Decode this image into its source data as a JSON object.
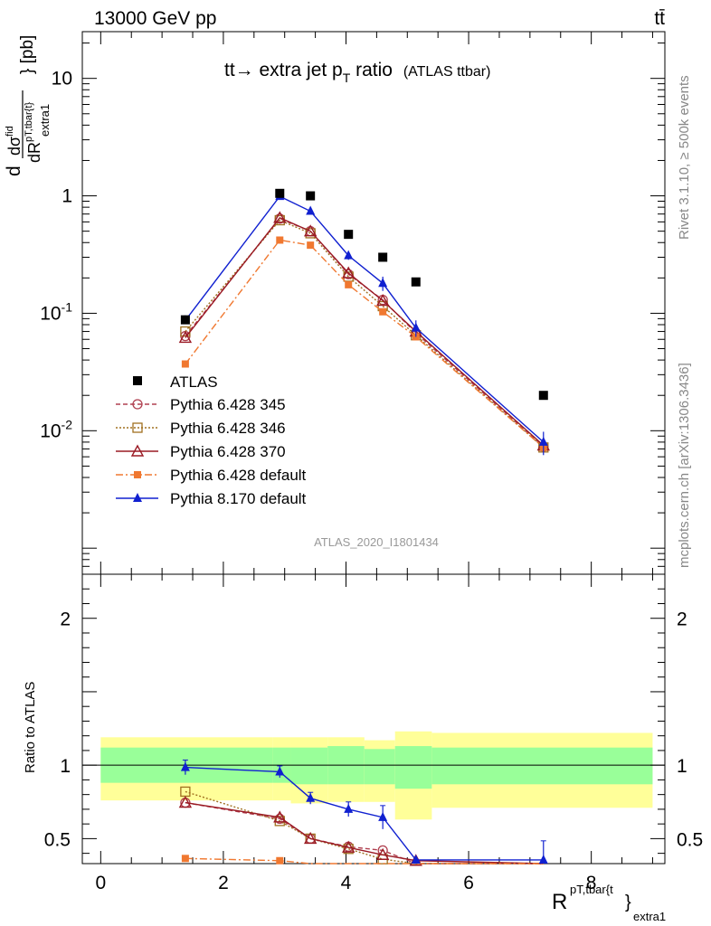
{
  "header": {
    "left": "13000 GeV pp",
    "right": "tt̄"
  },
  "side_labels": {
    "rivet": "Rivet 3.1.10, ≥ 500k events",
    "mcplots": "mcplots.cern.ch [arXiv:1306.3436]"
  },
  "watermark": "ATLAS_2020_I1801434",
  "chart_data": {
    "type": "line",
    "title": "tt̅→ extra jet pT ratio (ATLAS ttbar)",
    "title_main": "tt→ extra jet p",
    "title_sub": "T",
    "title_tail": " ratio",
    "title_small": "(ATLAS ttbar)",
    "ylabel_main": "dσ / dR [pb]",
    "ylabel_parts": {
      "d": "d",
      "sigma": "dσ",
      "fid": "fid",
      "den": "dR",
      "den_sup": "pT,tbar{t}",
      "den_sub": "extra1",
      "unit": "} [pb]"
    },
    "xlabel_main": "R",
    "xlabel_sup": "pT,tbar{t",
    "xlabel_sub": "}",
    "xlabel_sub2": "extra1",
    "ratio_ylabel": "Ratio to ATLAS",
    "xlim": [
      -0.3,
      9.2
    ],
    "ylim_main": [
      0.0006,
      25
    ],
    "ylim_ratio": [
      0.33,
      2.3
    ],
    "yscale_main": "log",
    "x_ticks": [
      0,
      2,
      4,
      6,
      8
    ],
    "y_ticks_main": [
      {
        "value": 0.01,
        "base": "10",
        "exp": "-2"
      },
      {
        "value": 0.1,
        "base": "10",
        "exp": "-1"
      },
      {
        "value": 1,
        "base": "1",
        "exp": ""
      },
      {
        "value": 10,
        "base": "10",
        "exp": ""
      }
    ],
    "y_ticks_ratio": [
      {
        "value": 0.5,
        "label": "0.5"
      },
      {
        "value": 1,
        "label": "1"
      },
      {
        "value": 2,
        "label": "2"
      }
    ],
    "legend_position": "left",
    "data": {
      "name": "ATLAS",
      "x": [
        1.38,
        2.92,
        3.42,
        4.04,
        4.6,
        5.14,
        7.22
      ],
      "y": [
        0.088,
        1.05,
        1.0,
        0.47,
        0.3,
        0.185,
        0.02
      ]
    },
    "bands": [
      {
        "x0": 0.0,
        "x1": 2.8,
        "green": [
          0.88,
          1.12
        ],
        "yellow": [
          0.76,
          1.19
        ]
      },
      {
        "x0": 2.8,
        "x1": 3.1,
        "green": [
          0.88,
          1.12
        ],
        "yellow": [
          0.76,
          1.19
        ]
      },
      {
        "x0": 3.1,
        "x1": 3.7,
        "green": [
          0.87,
          1.12
        ],
        "yellow": [
          0.74,
          1.19
        ]
      },
      {
        "x0": 3.7,
        "x1": 4.3,
        "green": [
          0.87,
          1.13
        ],
        "yellow": [
          0.75,
          1.19
        ]
      },
      {
        "x0": 4.3,
        "x1": 4.8,
        "green": [
          0.87,
          1.11
        ],
        "yellow": [
          0.75,
          1.17
        ]
      },
      {
        "x0": 4.8,
        "x1": 5.4,
        "green": [
          0.84,
          1.13
        ],
        "yellow": [
          0.63,
          1.23
        ]
      },
      {
        "x0": 5.4,
        "x1": 9.0,
        "green": [
          0.87,
          1.12
        ],
        "yellow": [
          0.71,
          1.22
        ]
      }
    ],
    "series": [
      {
        "name": "Pythia 6.428 345",
        "color": "#b04050",
        "dash": "5,3",
        "marker": "circle-open",
        "x": [
          1.38,
          2.92,
          3.42,
          4.04,
          4.6,
          5.14,
          7.22
        ],
        "y": [
          0.064,
          0.64,
          0.5,
          0.215,
          0.13,
          0.068,
          0.0073
        ],
        "ratio": [
          0.745,
          0.635,
          0.5,
          0.445,
          0.42,
          0.33,
          0.33
        ],
        "ratio_err": [
          0,
          0,
          0,
          0,
          0,
          0,
          0
        ]
      },
      {
        "name": "Pythia 6.428 346",
        "color": "#a07020",
        "dash": "2,2",
        "marker": "square-open",
        "x": [
          1.38,
          2.92,
          3.42,
          4.04,
          4.6,
          5.14,
          7.22
        ],
        "y": [
          0.07,
          0.62,
          0.48,
          0.205,
          0.115,
          0.065,
          0.0072
        ],
        "ratio": [
          0.82,
          0.62,
          0.5,
          0.43,
          0.36,
          0.33,
          0.33
        ],
        "ratio_err": [
          0,
          0,
          0,
          0,
          0,
          0,
          0
        ]
      },
      {
        "name": "Pythia 6.428 370",
        "color": "#9a1a24",
        "dash": "",
        "marker": "triangle-open",
        "x": [
          1.38,
          2.92,
          3.42,
          4.04,
          4.6,
          5.14,
          7.22
        ],
        "y": [
          0.062,
          0.65,
          0.5,
          0.22,
          0.128,
          0.07,
          0.0075
        ],
        "ratio": [
          0.745,
          0.645,
          0.5,
          0.44,
          0.39,
          0.35,
          0.33
        ],
        "ratio_err": [
          0,
          0,
          0,
          0,
          0,
          0,
          0
        ]
      },
      {
        "name": "Pythia 6.428 default",
        "color": "#f07830",
        "dash": "8,3,2,3",
        "marker": "square-filled",
        "x": [
          1.38,
          2.92,
          3.42,
          4.04,
          4.6,
          5.14,
          7.22
        ],
        "y": [
          0.037,
          0.42,
          0.38,
          0.175,
          0.103,
          0.063,
          0.0072
        ],
        "ratio": [
          0.365,
          0.35,
          0.33,
          0.33,
          0.33,
          0.33,
          0.33
        ],
        "ratio_err": [
          0.02,
          0,
          0,
          0,
          0,
          0,
          0
        ]
      },
      {
        "name": "Pythia 8.170 default",
        "color": "#1020d0",
        "dash": "",
        "marker": "triangle-filled",
        "x": [
          1.38,
          2.92,
          3.42,
          4.04,
          4.6,
          5.14,
          7.22
        ],
        "y": [
          0.087,
          0.99,
          0.74,
          0.31,
          0.18,
          0.075,
          0.008
        ],
        "y_err": [
          0.005,
          0.05,
          0.05,
          0.025,
          0.025,
          0.012,
          0.0018
        ],
        "ratio": [
          0.985,
          0.955,
          0.775,
          0.7,
          0.645,
          0.355,
          0.355
        ],
        "ratio_err": [
          0.05,
          0.04,
          0.04,
          0.05,
          0.08,
          0.0,
          0.13
        ]
      }
    ]
  }
}
